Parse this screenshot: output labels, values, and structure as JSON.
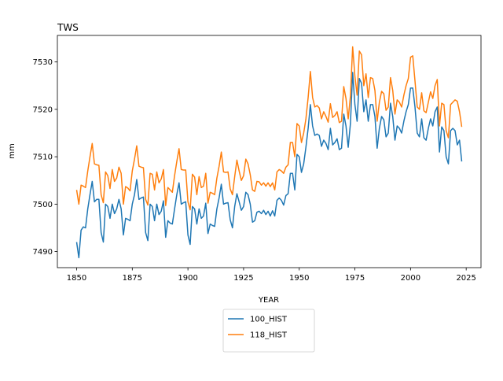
{
  "chart_data": {
    "type": "line",
    "title": "TWS",
    "xlabel": "YEAR",
    "ylabel": "mm",
    "x": [
      1850,
      1851,
      1852,
      1853,
      1854,
      1855,
      1856,
      1857,
      1858,
      1859,
      1860,
      1861,
      1862,
      1863,
      1864,
      1865,
      1866,
      1867,
      1868,
      1869,
      1870,
      1871,
      1872,
      1873,
      1874,
      1875,
      1876,
      1877,
      1878,
      1879,
      1880,
      1881,
      1882,
      1883,
      1884,
      1885,
      1886,
      1887,
      1888,
      1889,
      1890,
      1891,
      1892,
      1893,
      1894,
      1895,
      1896,
      1897,
      1898,
      1899,
      1900,
      1901,
      1902,
      1903,
      1904,
      1905,
      1906,
      1907,
      1908,
      1909,
      1910,
      1911,
      1912,
      1913,
      1914,
      1915,
      1916,
      1917,
      1918,
      1919,
      1920,
      1921,
      1922,
      1923,
      1924,
      1925,
      1926,
      1927,
      1928,
      1929,
      1930,
      1931,
      1932,
      1933,
      1934,
      1935,
      1936,
      1937,
      1938,
      1939,
      1940,
      1941,
      1942,
      1943,
      1944,
      1945,
      1946,
      1947,
      1948,
      1949,
      1950,
      1951,
      1952,
      1953,
      1954,
      1955,
      1956,
      1957,
      1958,
      1959,
      1960,
      1961,
      1962,
      1963,
      1964,
      1965,
      1966,
      1967,
      1968,
      1969,
      1970,
      1971,
      1972,
      1973,
      1974,
      1975,
      1976,
      1977,
      1978,
      1979,
      1980,
      1981,
      1982,
      1983,
      1984,
      1985,
      1986,
      1987,
      1988,
      1989,
      1990,
      1991,
      1992,
      1993,
      1994,
      1995,
      1996,
      1997,
      1998,
      1999,
      2000,
      2001,
      2002,
      2003,
      2004,
      2005,
      2006,
      2007,
      2008,
      2009,
      2010,
      2011,
      2012,
      2013,
      2014,
      2015,
      2016,
      2017,
      2018,
      2019,
      2020,
      2021,
      2022,
      2023
    ],
    "series": [
      {
        "name": "100_HIST",
        "color": "#1f77b4",
        "values": [
          7492,
          7488.7,
          7494.5,
          7495.2,
          7495,
          7499,
          7502,
          7504.8,
          7500.5,
          7501,
          7501,
          7494,
          7492,
          7500,
          7499.5,
          7497,
          7500,
          7498,
          7499,
          7501,
          7499,
          7493.5,
          7497,
          7496.8,
          7496.5,
          7500,
          7502,
          7505.2,
          7501,
          7501.3,
          7501.5,
          7494,
          7492.3,
          7500,
          7499.5,
          7496.5,
          7500,
          7497.8,
          7498.5,
          7500.7,
          7493,
          7496.5,
          7496,
          7495.8,
          7499,
          7502,
          7504.5,
          7500,
          7500.3,
          7500.5,
          7493.5,
          7491.5,
          7499.5,
          7499,
          7495.8,
          7499,
          7497,
          7497.5,
          7500.2,
          7493.8,
          7495.8,
          7495.5,
          7495.3,
          7499,
          7501.3,
          7504.2,
          7500,
          7500.2,
          7500.3,
          7496.7,
          7495,
          7499.5,
          7502.2,
          7500.5,
          7498.7,
          7499.5,
          7502.5,
          7502,
          7500,
          7496.2,
          7496.5,
          7498.3,
          7498.5,
          7498,
          7498.7,
          7497.8,
          7498.5,
          7497.5,
          7498.6,
          7497.5,
          7500.8,
          7501.3,
          7500.8,
          7499.8,
          7501.8,
          7502.2,
          7506.5,
          7506.5,
          7503,
          7510.5,
          7510,
          7506.7,
          7508.5,
          7512,
          7516,
          7521,
          7516.5,
          7514.5,
          7514.8,
          7514.5,
          7512.2,
          7513.5,
          7512.8,
          7511.5,
          7516,
          7512.5,
          7513,
          7513.8,
          7511.5,
          7511.8,
          7519,
          7516.5,
          7512,
          7517,
          7527.8,
          7521,
          7517.5,
          7526.5,
          7525.5,
          7519.5,
          7522,
          7517.5,
          7521,
          7521,
          7518.5,
          7511.8,
          7516,
          7518.5,
          7517.8,
          7514.2,
          7515,
          7521.3,
          7518.5,
          7513.5,
          7516.5,
          7516,
          7515,
          7517.5,
          7519.5,
          7521,
          7524.5,
          7524.5,
          7520.5,
          7515,
          7514.2,
          7518,
          7514,
          7513.5,
          7516,
          7518,
          7516.5,
          7519.5,
          7520.5,
          7511,
          7516.3,
          7515.5,
          7510,
          7508.5,
          7515.5,
          7516,
          7515.5,
          7512.5,
          7513.5,
          7509
        ]
      },
      {
        "name": "118_HIST",
        "color": "#ff7f0e",
        "values": [
          7503,
          7500,
          7504,
          7503.8,
          7503.5,
          7507,
          7510,
          7512.8,
          7508.5,
          7508.3,
          7508.2,
          7502,
          7500.3,
          7506.8,
          7506,
          7503.3,
          7507.3,
          7504.8,
          7505.5,
          7507.8,
          7506.5,
          7500,
          7503.7,
          7503.4,
          7502.8,
          7507,
          7509.5,
          7512.3,
          7508,
          7507.8,
          7507.7,
          7501,
          7499.8,
          7506.5,
          7506.3,
          7503,
          7506.8,
          7504.5,
          7505.3,
          7507.3,
          7499.7,
          7503.5,
          7503,
          7502.5,
          7506,
          7509,
          7511.7,
          7507.3,
          7507.2,
          7507.2,
          7500.5,
          7498.8,
          7506.3,
          7505.7,
          7502,
          7505.8,
          7503.5,
          7503.8,
          7506.5,
          7500.2,
          7502.5,
          7502.3,
          7502,
          7505.5,
          7508,
          7511,
          7506.8,
          7506.7,
          7506.8,
          7503.2,
          7502,
          7505.8,
          7509.3,
          7507,
          7505,
          7506,
          7509.5,
          7508.5,
          7506.2,
          7503,
          7502.7,
          7504.8,
          7504.7,
          7504,
          7504.5,
          7503.8,
          7504.5,
          7503.7,
          7504.5,
          7503,
          7506.8,
          7507.3,
          7507,
          7506.5,
          7507.8,
          7508.3,
          7513,
          7513,
          7510,
          7517,
          7516.5,
          7513,
          7515,
          7518,
          7522.5,
          7528,
          7522.5,
          7520.5,
          7520.8,
          7520.3,
          7518,
          7519.5,
          7518.5,
          7517.3,
          7521.2,
          7518.3,
          7518.7,
          7519.5,
          7517.2,
          7517.5,
          7524.8,
          7522.3,
          7518,
          7522.8,
          7533.2,
          7527,
          7523,
          7532.3,
          7531.5,
          7525,
          7527.5,
          7522.5,
          7526.7,
          7526.5,
          7524,
          7517.5,
          7521.5,
          7523.8,
          7523.3,
          7519.8,
          7520.5,
          7526.7,
          7524,
          7519,
          7522,
          7521.5,
          7520.5,
          7523,
          7525,
          7526.5,
          7531,
          7531.3,
          7526,
          7520.5,
          7520,
          7523.5,
          7519.7,
          7519.3,
          7521.5,
          7523.7,
          7522.3,
          7525,
          7526.3,
          7516.5,
          7521.3,
          7521,
          7515.5,
          7514,
          7521,
          7521.5,
          7522,
          7521.7,
          7519.5,
          7516.3
        ]
      }
    ],
    "xlim": [
      1841.35,
      2031.65
    ],
    "xticks": [
      1850,
      1875,
      1900,
      1925,
      1950,
      1975,
      2000,
      2025
    ],
    "ylim": [
      7486.6,
      7535.6
    ],
    "yticks": [
      7490,
      7500,
      7510,
      7520,
      7530
    ],
    "legend": "below"
  }
}
